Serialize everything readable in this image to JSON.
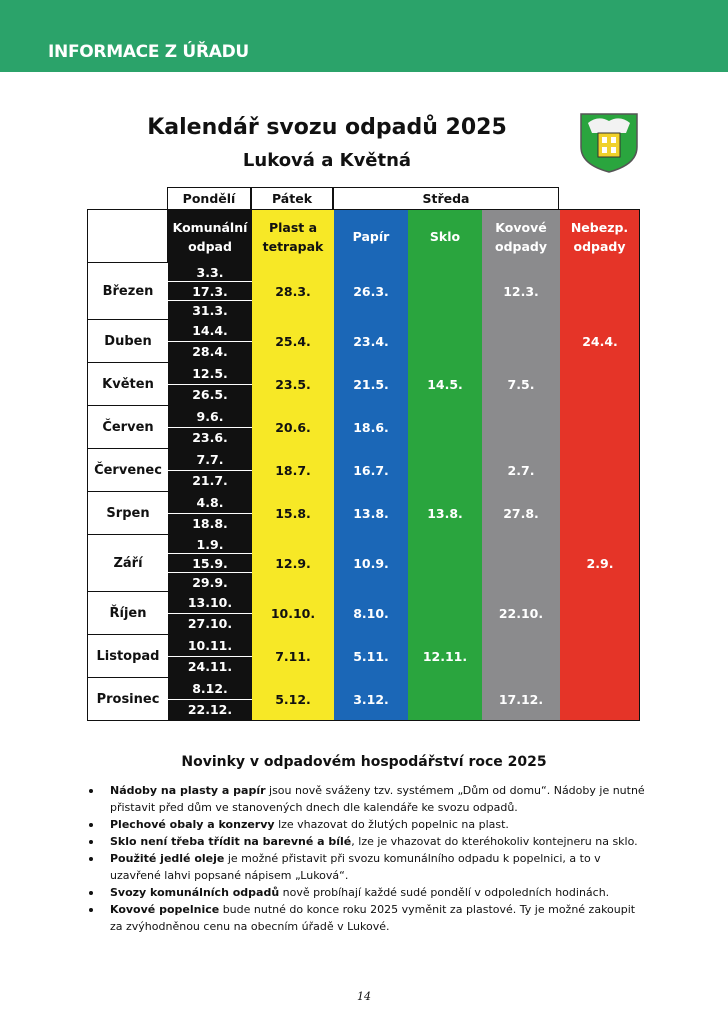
{
  "header": {
    "label": "INFORMACE Z ÚŘADU"
  },
  "title": "Kalendář svozu odpadů 2025",
  "subtitle": "Luková a Květná",
  "table": {
    "groups": [
      "Pondělí",
      "Pátek",
      "Středa"
    ],
    "columns": [
      "Komunální odpad",
      "Plast a tetrapak",
      "Papír",
      "Sklo",
      "Kovové odpady",
      "Nebezp. odpady"
    ],
    "rows": [
      {
        "month": "Březen",
        "komunalni": [
          "3.3.",
          "17.3.",
          "31.3."
        ],
        "plast": "28.3.",
        "papir": "26.3.",
        "kovove": "12.3."
      },
      {
        "month": "Duben",
        "komunalni": [
          "14.4.",
          "28.4."
        ],
        "plast": "25.4.",
        "papir": "23.4.",
        "nebezp": "24.4."
      },
      {
        "month": "Květen",
        "komunalni": [
          "12.5.",
          "26.5."
        ],
        "plast": "23.5.",
        "papir": "21.5.",
        "sklo": "14.5.",
        "kovove": "7.5."
      },
      {
        "month": "Červen",
        "komunalni": [
          "9.6.",
          "23.6."
        ],
        "plast": "20.6.",
        "papir": "18.6."
      },
      {
        "month": "Červenec",
        "komunalni": [
          "7.7.",
          "21.7."
        ],
        "plast": "18.7.",
        "papir": "16.7.",
        "kovove": "2.7."
      },
      {
        "month": "Srpen",
        "komunalni": [
          "4.8.",
          "18.8."
        ],
        "plast": "15.8.",
        "papir": "13.8.",
        "sklo": "13.8.",
        "kovove": "27.8."
      },
      {
        "month": "Září",
        "komunalni": [
          "1.9.",
          "15.9.",
          "29.9."
        ],
        "plast": "12.9.",
        "papir": "10.9.",
        "nebezp": "2.9."
      },
      {
        "month": "Říjen",
        "komunalni": [
          "13.10.",
          "27.10."
        ],
        "plast": "10.10.",
        "papir": "8.10.",
        "kovove": "22.10."
      },
      {
        "month": "Listopad",
        "komunalni": [
          "10.11.",
          "24.11."
        ],
        "plast": "7.11.",
        "papir": "5.11.",
        "sklo": "12.11."
      },
      {
        "month": "Prosinec",
        "komunalni": [
          "8.12.",
          "22.12."
        ],
        "plast": "5.12.",
        "papir": "3.12.",
        "kovove": "17.12."
      }
    ]
  },
  "news": {
    "title": "Novinky v odpadovém hospodářství roce 2025",
    "items": [
      {
        "bold": "Nádoby na plasty a papír",
        "text": " jsou nově sváženy tzv. systémem „Dům od domu“. Nádoby je nutné přistavit před dům ve stanovených dnech dle kalendáře ke svozu odpadů."
      },
      {
        "bold": "Plechové obaly a konzervy",
        "text": " lze vhazovat do žlutých popelnic na plast."
      },
      {
        "bold": "Sklo není třeba třídit na barevné a bílé",
        "text": ", lze je vhazovat do kteréhokoliv kontejneru na sklo."
      },
      {
        "bold": "Použité jedlé oleje",
        "text": " je možné přistavit při svozu komunálního odpadu k popelnici, a to v uzavřené lahvi popsané nápisem „Luková“."
      },
      {
        "bold": "Svozy komunálních odpadů",
        "text": " nově probíhají každé sudé pondělí v odpoledních hodinách."
      },
      {
        "bold": "Kovové popelnice",
        "text": " bude nutné do konce roku 2025 vyměnit za plastové. Ty je možné zakoupit za zvýhodněnou cenu na obecním úřadě v Lukové."
      }
    ]
  },
  "page_number": "14"
}
